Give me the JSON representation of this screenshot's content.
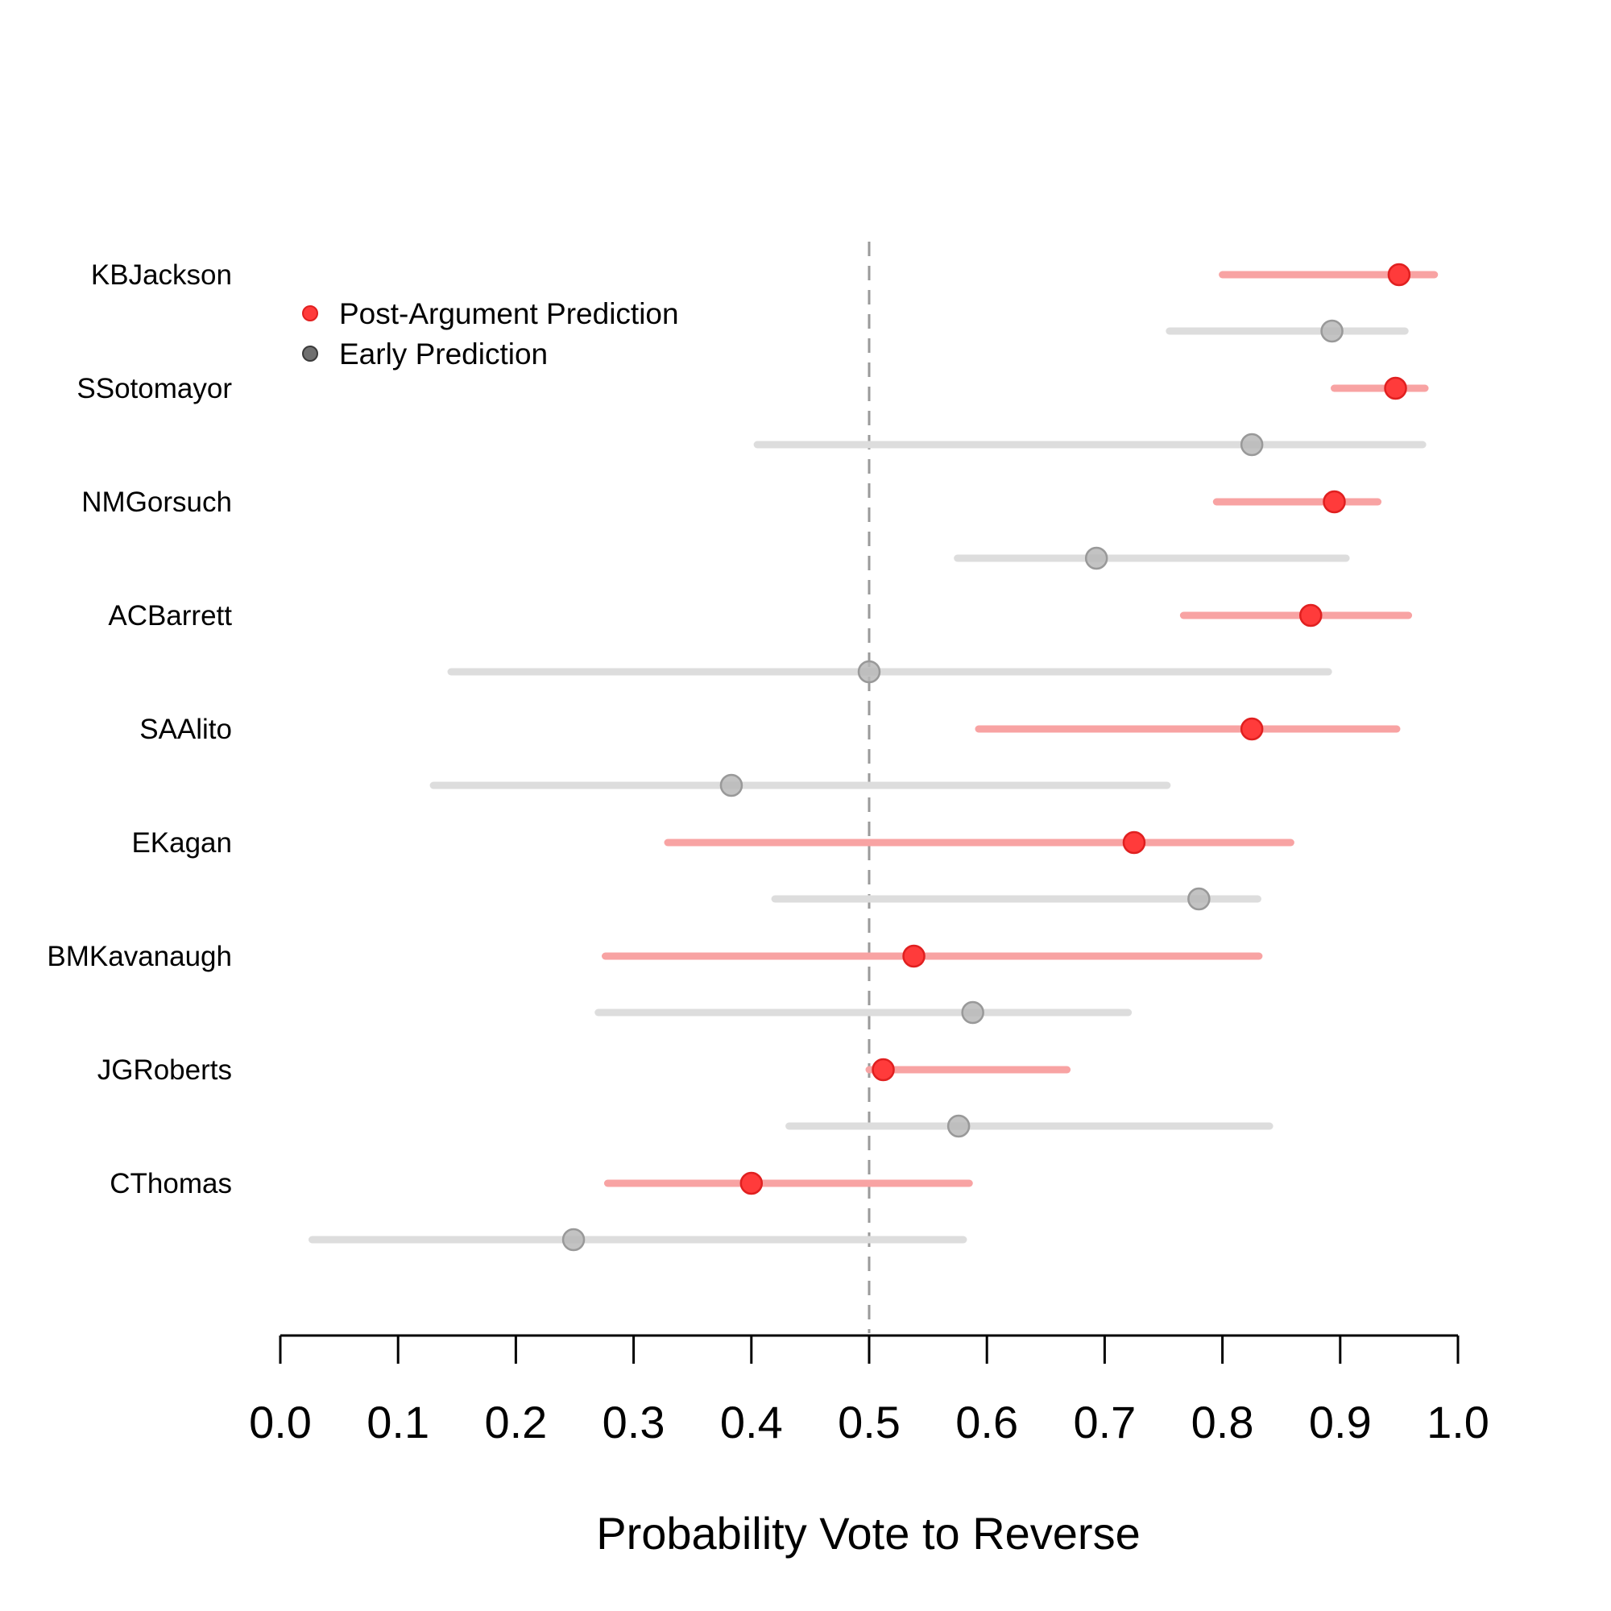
{
  "chart_data": {
    "type": "dot-interval",
    "title": "",
    "xlabel": "Probability Vote to Reverse",
    "ylabel": "",
    "xlim": [
      0.0,
      1.0
    ],
    "xticks": [
      "0.0",
      "0.1",
      "0.2",
      "0.3",
      "0.4",
      "0.5",
      "0.6",
      "0.7",
      "0.8",
      "0.9",
      "1.0"
    ],
    "reference_line": 0.5,
    "legend": {
      "placement": "top-left",
      "entries": [
        {
          "label": "Post-Argument Prediction",
          "color": "#ff0000"
        },
        {
          "label": "Early Prediction",
          "color": "#808080"
        }
      ]
    },
    "colors": {
      "post_point": "#ff3b3b",
      "post_interval": "#f8a3a3",
      "early_point": "#b8b8b8",
      "early_interval": "#dddddd"
    },
    "justices": [
      {
        "name": "KBJackson",
        "post": {
          "value": 0.95,
          "low": 0.8,
          "high": 0.98
        },
        "early": {
          "value": 0.893,
          "low": 0.755,
          "high": 0.955
        }
      },
      {
        "name": "SSotomayor",
        "post": {
          "value": 0.947,
          "low": 0.895,
          "high": 0.972
        },
        "early": {
          "value": 0.825,
          "low": 0.405,
          "high": 0.97
        }
      },
      {
        "name": "NMGorsuch",
        "post": {
          "value": 0.895,
          "low": 0.795,
          "high": 0.932
        },
        "early": {
          "value": 0.693,
          "low": 0.575,
          "high": 0.905
        }
      },
      {
        "name": "ACBarrett",
        "post": {
          "value": 0.875,
          "low": 0.767,
          "high": 0.958
        },
        "early": {
          "value": 0.5,
          "low": 0.145,
          "high": 0.89
        }
      },
      {
        "name": "SAAlito",
        "post": {
          "value": 0.825,
          "low": 0.593,
          "high": 0.948
        },
        "early": {
          "value": 0.383,
          "low": 0.13,
          "high": 0.753
        }
      },
      {
        "name": "EKagan",
        "post": {
          "value": 0.725,
          "low": 0.329,
          "high": 0.858
        },
        "early": {
          "value": 0.78,
          "low": 0.42,
          "high": 0.83
        }
      },
      {
        "name": "BMKavanaugh",
        "post": {
          "value": 0.538,
          "low": 0.276,
          "high": 0.831
        },
        "early": {
          "value": 0.588,
          "low": 0.27,
          "high": 0.72
        }
      },
      {
        "name": "JGRoberts",
        "post": {
          "value": 0.512,
          "low": 0.5,
          "high": 0.668
        },
        "early": {
          "value": 0.576,
          "low": 0.432,
          "high": 0.84
        }
      },
      {
        "name": "CThomas",
        "post": {
          "value": 0.4,
          "low": 0.278,
          "high": 0.585
        },
        "early": {
          "value": 0.249,
          "low": 0.027,
          "high": 0.58
        }
      }
    ]
  }
}
